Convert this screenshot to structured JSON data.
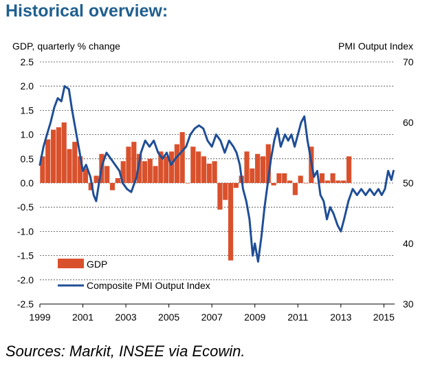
{
  "title": "Historical overview:",
  "source": "Sources: Markit, INSEE via Ecowin.",
  "colors": {
    "bars": "#d9512c",
    "line": "#1f4e96",
    "title": "#1f5f8f",
    "grid": "#444444"
  },
  "chart_data": {
    "type": "bar+line",
    "left_axis": {
      "label": "GDP, quarterly % change",
      "ylim": [
        -2.5,
        2.5
      ],
      "ticks": [
        "2.5",
        "2.0",
        "1.5",
        "1.0",
        "0.5",
        "0.0",
        "-0.5",
        "-1.0",
        "-1.5",
        "-2.0",
        "-2.5"
      ],
      "tick_values": [
        2.5,
        2.0,
        1.5,
        1.0,
        0.5,
        0.0,
        -0.5,
        -1.0,
        -1.5,
        -2.0,
        -2.5
      ]
    },
    "right_axis": {
      "label": "PMI Output  Index",
      "ylim": [
        30,
        70
      ],
      "ticks": [
        "70",
        "60",
        "50",
        "40",
        "30"
      ],
      "tick_values": [
        70,
        60,
        50,
        40,
        30
      ]
    },
    "x_axis": {
      "xlim": [
        1999.0,
        2015.5
      ],
      "ticks": [
        "1999",
        "2001",
        "2003",
        "2005",
        "2007",
        "2009",
        "2011",
        "2013",
        "2015"
      ],
      "tick_values": [
        1999,
        2001,
        2003,
        2005,
        2007,
        2009,
        2011,
        2013,
        2015
      ]
    },
    "legend": [
      "GDP",
      "Composite PMI Output Index"
    ],
    "gdp_series": {
      "name": "GDP",
      "start_year": 1999.0,
      "step": 0.25,
      "values": [
        0.55,
        0.9,
        1.1,
        1.15,
        1.25,
        0.7,
        0.85,
        0.55,
        0.3,
        -0.15,
        0.15,
        0.6,
        0.35,
        -0.15,
        0.1,
        0.45,
        0.75,
        0.85,
        0.6,
        0.45,
        0.5,
        0.35,
        0.65,
        0.55,
        0.65,
        0.8,
        1.05,
        0.0,
        0.75,
        0.65,
        0.55,
        0.4,
        0.45,
        -0.55,
        -0.35,
        -1.6,
        -0.1,
        0.15,
        0.65,
        0.3,
        0.6,
        0.55,
        0.8,
        -0.05,
        0.2,
        0.2,
        0.05,
        -0.25,
        0.15,
        0.0,
        0.75,
        0.0,
        0.2,
        0.05,
        0.2,
        0.05,
        0.05,
        0.55
      ]
    },
    "pmi_series": {
      "name": "Composite PMI Output Index",
      "points": [
        [
          1999.0,
          53.0
        ],
        [
          1999.17,
          56.0
        ],
        [
          1999.33,
          58.0
        ],
        [
          1999.5,
          60.0
        ],
        [
          1999.67,
          62.5
        ],
        [
          1999.83,
          64.0
        ],
        [
          2000.0,
          63.5
        ],
        [
          2000.15,
          66.0
        ],
        [
          2000.35,
          65.5
        ],
        [
          2000.5,
          62.0
        ],
        [
          2000.7,
          58.0
        ],
        [
          2000.85,
          55.0
        ],
        [
          2001.0,
          52.0
        ],
        [
          2001.15,
          53.0
        ],
        [
          2001.35,
          51.0
        ],
        [
          2001.5,
          48.0
        ],
        [
          2001.62,
          47.0
        ],
        [
          2001.75,
          50.0
        ],
        [
          2001.9,
          53.0
        ],
        [
          2002.1,
          55.0
        ],
        [
          2002.3,
          54.0
        ],
        [
          2002.5,
          53.0
        ],
        [
          2002.7,
          52.0
        ],
        [
          2002.85,
          50.0
        ],
        [
          2003.05,
          49.0
        ],
        [
          2003.25,
          48.5
        ],
        [
          2003.5,
          51.0
        ],
        [
          2003.7,
          55.0
        ],
        [
          2003.9,
          57.0
        ],
        [
          2004.1,
          56.0
        ],
        [
          2004.3,
          57.0
        ],
        [
          2004.5,
          55.0
        ],
        [
          2004.7,
          54.0
        ],
        [
          2004.9,
          55.0
        ],
        [
          2005.1,
          53.0
        ],
        [
          2005.3,
          54.0
        ],
        [
          2005.55,
          55.0
        ],
        [
          2005.8,
          56.0
        ],
        [
          2006.0,
          58.0
        ],
        [
          2006.2,
          59.0
        ],
        [
          2006.4,
          59.5
        ],
        [
          2006.6,
          59.0
        ],
        [
          2006.8,
          57.0
        ],
        [
          2007.0,
          56.0
        ],
        [
          2007.2,
          58.0
        ],
        [
          2007.4,
          57.0
        ],
        [
          2007.6,
          55.0
        ],
        [
          2007.8,
          57.0
        ],
        [
          2008.0,
          56.0
        ],
        [
          2008.15,
          55.0
        ],
        [
          2008.3,
          53.0
        ],
        [
          2008.45,
          49.0
        ],
        [
          2008.6,
          47.0
        ],
        [
          2008.75,
          44.0
        ],
        [
          2008.9,
          38.0
        ],
        [
          2009.0,
          40.0
        ],
        [
          2009.15,
          37.0
        ],
        [
          2009.3,
          41.0
        ],
        [
          2009.45,
          46.0
        ],
        [
          2009.6,
          50.0
        ],
        [
          2009.75,
          54.0
        ],
        [
          2009.9,
          57.0
        ],
        [
          2010.05,
          59.0
        ],
        [
          2010.2,
          56.0
        ],
        [
          2010.4,
          58.0
        ],
        [
          2010.55,
          57.0
        ],
        [
          2010.7,
          58.0
        ],
        [
          2010.85,
          56.0
        ],
        [
          2011.0,
          58.0
        ],
        [
          2011.15,
          60.0
        ],
        [
          2011.3,
          61.0
        ],
        [
          2011.45,
          57.0
        ],
        [
          2011.6,
          54.0
        ],
        [
          2011.75,
          51.0
        ],
        [
          2011.9,
          52.0
        ],
        [
          2012.05,
          48.0
        ],
        [
          2012.2,
          47.0
        ],
        [
          2012.35,
          44.0
        ],
        [
          2012.5,
          46.0
        ],
        [
          2012.65,
          45.0
        ],
        [
          2012.85,
          43.0
        ],
        [
          2013.0,
          42.0
        ],
        [
          2013.15,
          44.0
        ],
        [
          2013.35,
          47.0
        ],
        [
          2013.55,
          49.0
        ],
        [
          2013.75,
          48.0
        ],
        [
          2013.95,
          49.0
        ],
        [
          2014.15,
          48.0
        ],
        [
          2014.35,
          49.0
        ],
        [
          2014.55,
          48.0
        ],
        [
          2014.75,
          49.0
        ],
        [
          2014.9,
          48.0
        ],
        [
          2015.05,
          49.0
        ],
        [
          2015.2,
          52.0
        ],
        [
          2015.35,
          50.5
        ],
        [
          2015.45,
          52.0
        ]
      ]
    }
  }
}
